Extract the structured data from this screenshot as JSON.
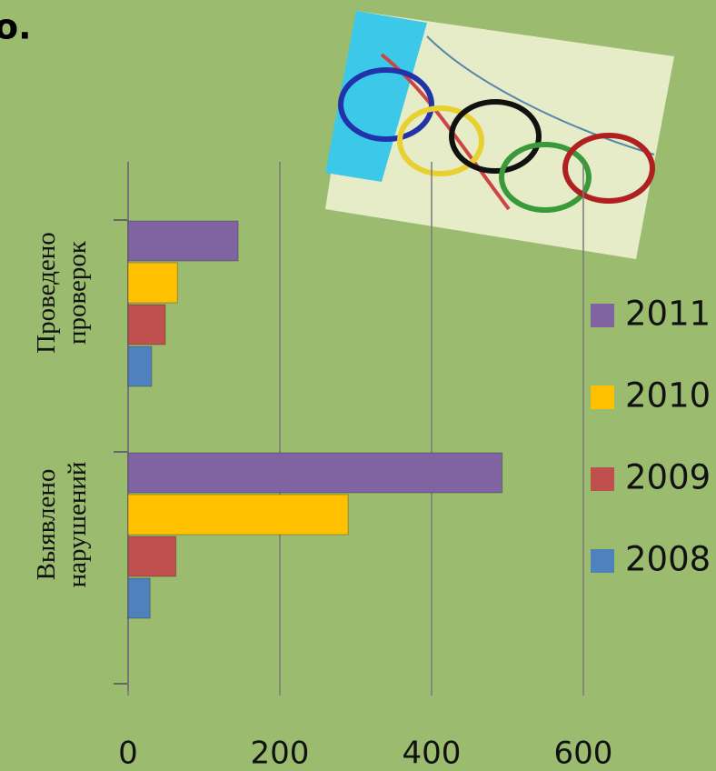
{
  "chart_data": {
    "type": "hbar",
    "annotation": "о.",
    "categories": [
      "Проведено проверок",
      "Выявлено нарушений"
    ],
    "series": [
      {
        "name": "2011",
        "color": "#8064a2",
        "values": [
          145,
          493
        ]
      },
      {
        "name": "2010",
        "color": "#ffc000",
        "values": [
          65,
          290
        ]
      },
      {
        "name": "2009",
        "color": "#c0504d",
        "values": [
          49,
          63
        ]
      },
      {
        "name": "2008",
        "color": "#4f81bd",
        "values": [
          31,
          29
        ]
      }
    ],
    "xlim": [
      0,
      600
    ],
    "xticks": [
      0,
      200,
      400,
      600
    ],
    "grid": true,
    "legend": "right"
  }
}
